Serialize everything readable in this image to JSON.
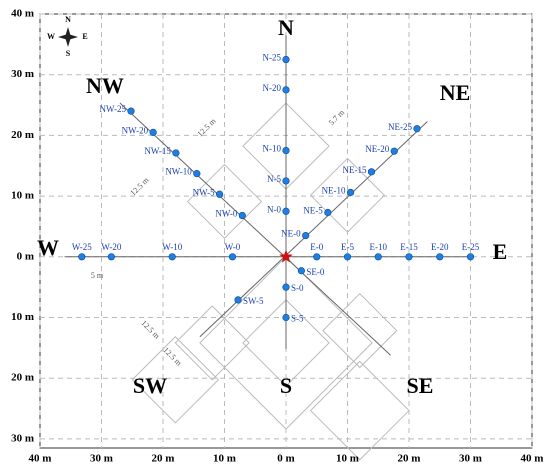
{
  "chart_data": {
    "type": "scatter",
    "labels": [
      "N-0",
      "N-5",
      "N-10",
      "N-20",
      "N-25",
      "E-0",
      "E-5",
      "E-10",
      "E-15",
      "E-20",
      "E-25",
      "SE-0",
      "S-0",
      "S-5",
      "SW-5",
      "W-0",
      "W-10",
      "W-20",
      "W-25",
      "NE-0",
      "NE-5",
      "NE-10",
      "NE-15",
      "NE-20",
      "NE-25",
      "NW-0",
      "NW-5",
      "NW-10",
      "NW-15",
      "NW-20",
      "NW-25"
    ],
    "x": [
      0,
      0,
      0,
      0,
      0,
      5,
      10,
      15,
      20,
      25,
      30,
      2.5,
      0,
      0,
      -7.8,
      -8.7,
      -18.5,
      -28.4,
      -33.2,
      3.2,
      6.8,
      10.5,
      13.9,
      17.6,
      21.3,
      -7.1,
      -10.8,
      -14.5,
      -17.9,
      -21.6,
      -25.2
    ],
    "y": [
      7.5,
      12.5,
      17.5,
      27.5,
      32.5,
      0,
      0,
      0,
      0,
      0,
      0,
      -2.3,
      -5,
      -10,
      -7.1,
      0,
      0,
      0,
      0,
      3.5,
      7.3,
      10.6,
      14,
      17.4,
      21.1,
      6.8,
      10.3,
      13.7,
      17.1,
      20.5,
      24
    ],
    "color": "#1f7fe0",
    "center": {
      "x": 0,
      "y": 0,
      "color": "#d01010"
    },
    "xlim": [
      -40,
      40
    ],
    "ylim": [
      -31.5,
      40
    ],
    "xticks": [
      {
        "value": -40,
        "label": "40 m"
      },
      {
        "value": -30,
        "label": "30 m"
      },
      {
        "value": -20,
        "label": "20 m"
      },
      {
        "value": -10,
        "label": "10 m"
      },
      {
        "value": 0,
        "label": "0 m"
      },
      {
        "value": 10,
        "label": "10 m"
      },
      {
        "value": 20,
        "label": "20 m"
      },
      {
        "value": 30,
        "label": "30 m"
      },
      {
        "value": 40,
        "label": "40 m"
      }
    ],
    "yticks": [
      {
        "value": 40,
        "label": "40 m"
      },
      {
        "value": 30,
        "label": "30 m"
      },
      {
        "value": 20,
        "label": "20 m"
      },
      {
        "value": 10,
        "label": "10 m"
      },
      {
        "value": 0,
        "label": "0 m"
      },
      {
        "value": -10,
        "label": "10 m"
      },
      {
        "value": -20,
        "label": "20 m"
      },
      {
        "value": -30,
        "label": "30 m"
      }
    ],
    "grid": true,
    "directions": [
      "N",
      "NE",
      "E",
      "SE",
      "S",
      "SW",
      "W",
      "NW"
    ],
    "annotations": [
      "12.5 m",
      "5.7 m",
      "12.5 m",
      "5 m",
      "12.5 m",
      "12.5 m"
    ],
    "compass": [
      "N",
      "E",
      "S",
      "W"
    ]
  }
}
